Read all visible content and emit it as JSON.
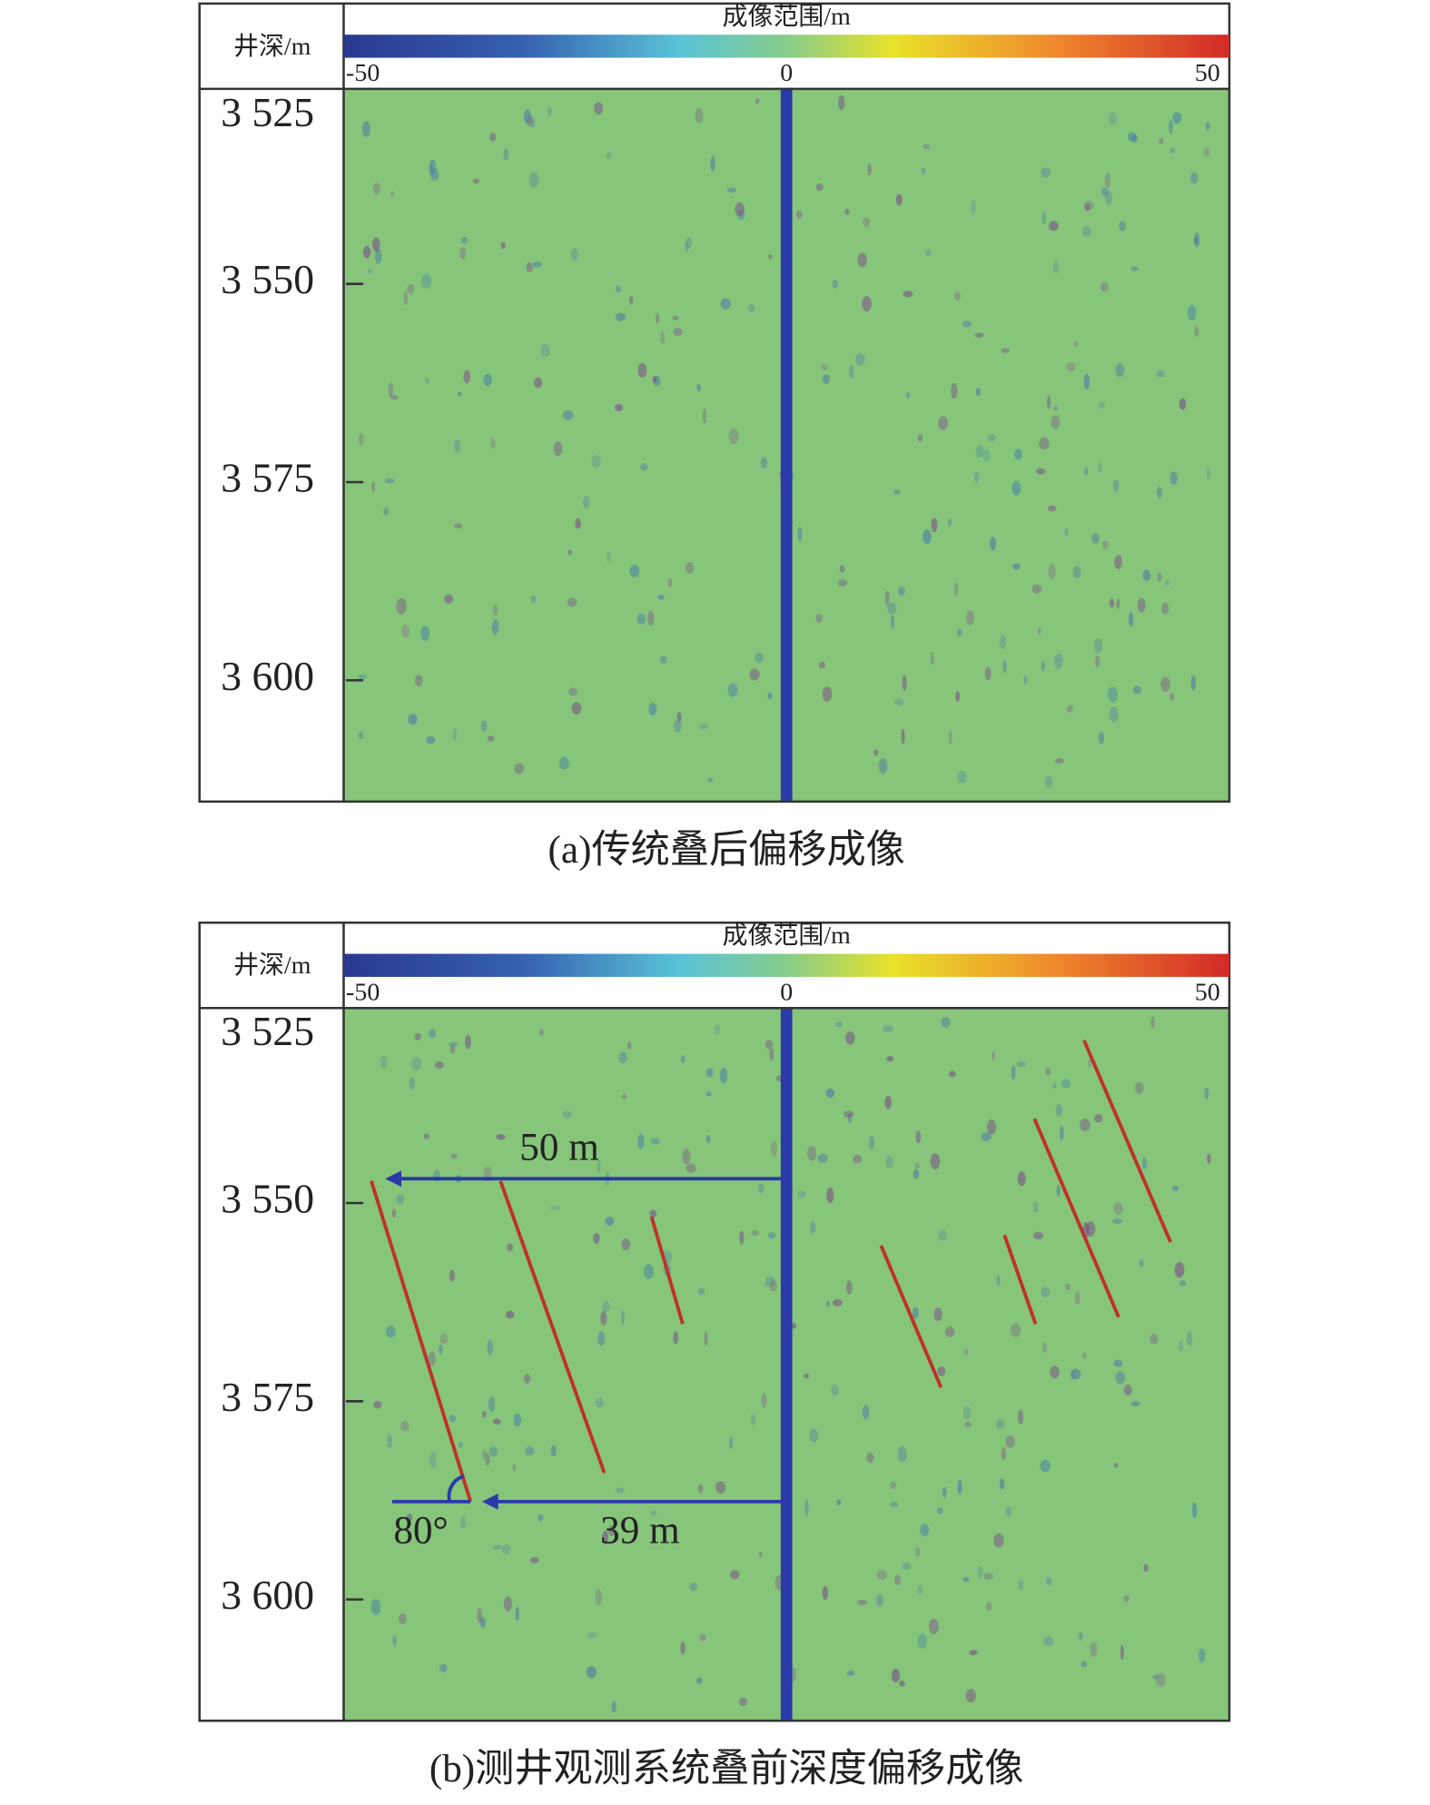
{
  "panels": [
    {
      "caption": "(a)传统叠后偏移成像",
      "y_label": "井深/m",
      "colorbar": {
        "label": "成像范围/m",
        "xlim": [
          -50,
          50
        ],
        "xticks": [
          -50,
          0,
          50
        ]
      },
      "ylim": [
        3525.4,
        3615.3
      ],
      "yticks": [
        {
          "value": 3525,
          "label": "3 525"
        },
        {
          "value": 3550,
          "label": "3 550"
        },
        {
          "value": 3575,
          "label": "3 575"
        },
        {
          "value": 3600,
          "label": "3 600"
        }
      ]
    },
    {
      "caption": "(b)测井观测系统叠前深度偏移成像",
      "y_label": "井深/m",
      "colorbar": {
        "label": "成像范围/m",
        "xlim": [
          -50,
          50
        ],
        "xticks": [
          -50,
          0,
          50
        ]
      },
      "ylim": [
        3525.4,
        3615.3
      ],
      "yticks": [
        {
          "value": 3525,
          "label": "3 525"
        },
        {
          "value": 3550,
          "label": "3 550"
        },
        {
          "value": 3575,
          "label": "3 575"
        },
        {
          "value": 3600,
          "label": "3 600"
        }
      ],
      "annotations": [
        "50 m",
        "39 m",
        "80°"
      ]
    }
  ]
}
